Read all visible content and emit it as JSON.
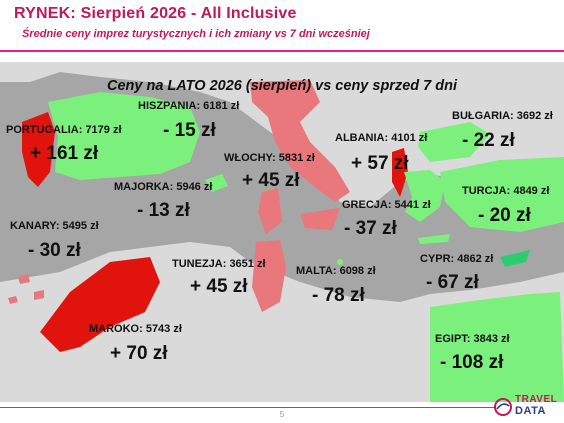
{
  "header": {
    "title": "RYNEK: Sierpień 2026 - All Inclusive",
    "subtitle": "Średnie ceny imprez turystycznych i ich zmiany vs 7 dni wcześniej"
  },
  "map": {
    "heading": "Ceny na LATO 2026 (sierpień) vs ceny sprzed 7 dni",
    "colors": {
      "price_down": "#7cf07c",
      "price_up": "#e0140c",
      "price_up_light": "#e8787b",
      "background_land": "#dadada",
      "background_sea": "#a6a6a6"
    },
    "destinations": {
      "portugalia": {
        "label": "PORTUGALIA: 7179 zł",
        "change": "+ 161 zł"
      },
      "hiszpania": {
        "label": "HISZPANIA: 6181 zł",
        "change": "- 15 zł"
      },
      "majorka": {
        "label": "MAJORKA: 5946 zł",
        "change": "- 13 zł"
      },
      "wlochy": {
        "label": "WŁOCHY: 5831 zł",
        "change": "+ 45 zł"
      },
      "albania": {
        "label": "ALBANIA: 4101 zł",
        "change": "+ 57 zł"
      },
      "bulgaria": {
        "label": "BUŁGARIA: 3692 zł",
        "change": "- 22 zł"
      },
      "turcja": {
        "label": "TURCJA: 4849 zł",
        "change": "- 20 zł"
      },
      "grecja": {
        "label": "GRECJA: 5441 zł",
        "change": "- 37 zł"
      },
      "kanary": {
        "label": "KANARY: 5495 zł",
        "change": "- 30 zł"
      },
      "tunezja": {
        "label": "TUNEZJA: 3651 zł",
        "change": "+ 45 zł"
      },
      "malta": {
        "label": "MALTA: 6098 zł",
        "change": "- 78 zł"
      },
      "cypr": {
        "label": "CYPR: 4862 zł",
        "change": "- 67 zł"
      },
      "maroko": {
        "label": "MAROKO: 5743 zł",
        "change": "+ 70 zł"
      },
      "egipt": {
        "label": "EGIPT: 3843 zł",
        "change": "- 108 zł"
      }
    }
  },
  "footer": {
    "page_number": "5",
    "logo_text_1": "TRAVEL",
    "logo_text_2": "DATA"
  }
}
